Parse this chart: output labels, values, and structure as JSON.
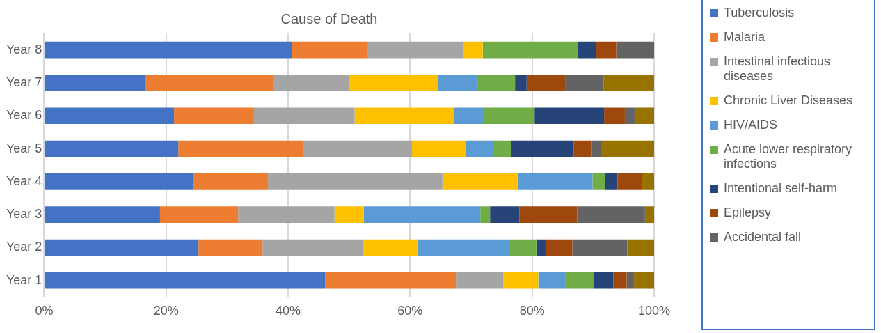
{
  "chart_data": {
    "type": "bar",
    "orientation": "horizontal",
    "stacked": true,
    "title": "Cause of Death",
    "categories": [
      "Year 8",
      "Year 7",
      "Year 6",
      "Year 5",
      "Year 4",
      "Year 3",
      "Year 2",
      "Year 1"
    ],
    "series": [
      {
        "name": "Tuberculosis",
        "color": "#4472c4",
        "values": [
          40.6,
          16.6,
          21.3,
          22.0,
          24.4,
          19.0,
          25.3,
          46.1
        ]
      },
      {
        "name": "Malaria",
        "color": "#ed7d31",
        "values": [
          12.5,
          20.9,
          13.1,
          20.6,
          12.3,
          12.8,
          10.5,
          21.4
        ]
      },
      {
        "name": "Intestinal infectious diseases",
        "color": "#a5a5a5",
        "values": [
          15.6,
          12.5,
          16.5,
          17.7,
          28.6,
          15.8,
          16.5,
          7.8
        ]
      },
      {
        "name": "Chronic Liver Diseases",
        "color": "#ffc000",
        "values": [
          3.2,
          14.6,
          16.3,
          8.9,
          12.3,
          4.8,
          8.9,
          5.7
        ]
      },
      {
        "name": "HIV/AIDS",
        "color": "#5b9bd5",
        "values": [
          0,
          6.3,
          4.9,
          4.4,
          12.3,
          19.1,
          15.0,
          4.5
        ]
      },
      {
        "name": "Acute lower respiratory infections",
        "color": "#70ad47",
        "values": [
          15.6,
          6.3,
          8.3,
          2.9,
          2.0,
          1.6,
          4.5,
          4.5
        ]
      },
      {
        "name": "Intentional self-harm",
        "color": "#264478",
        "values": [
          3.0,
          1.9,
          11.4,
          10.3,
          2.1,
          4.8,
          1.5,
          3.3
        ]
      },
      {
        "name": "Epilepsy",
        "color": "#9e480e",
        "values": [
          3.3,
          6.4,
          3.4,
          2.9,
          4.0,
          9.5,
          4.4,
          2.2
        ]
      },
      {
        "name": "Accidental fall",
        "color": "#636363",
        "values": [
          6.2,
          6.2,
          1.6,
          1.6,
          0,
          11.1,
          9.0,
          1.2
        ]
      },
      {
        "color": "#997300",
        "values": [
          0,
          8.3,
          3.2,
          8.7,
          2.0,
          1.5,
          4.4,
          3.3
        ]
      }
    ],
    "xlim": [
      0,
      100
    ],
    "xticks": [
      {
        "value": 0,
        "label": "0%"
      },
      {
        "value": 20,
        "label": "20%"
      },
      {
        "value": 40,
        "label": "40%"
      },
      {
        "value": 60,
        "label": "60%"
      },
      {
        "value": 80,
        "label": "80%"
      },
      {
        "value": 100,
        "label": "100%"
      }
    ],
    "grid": "x",
    "legend": "right"
  }
}
